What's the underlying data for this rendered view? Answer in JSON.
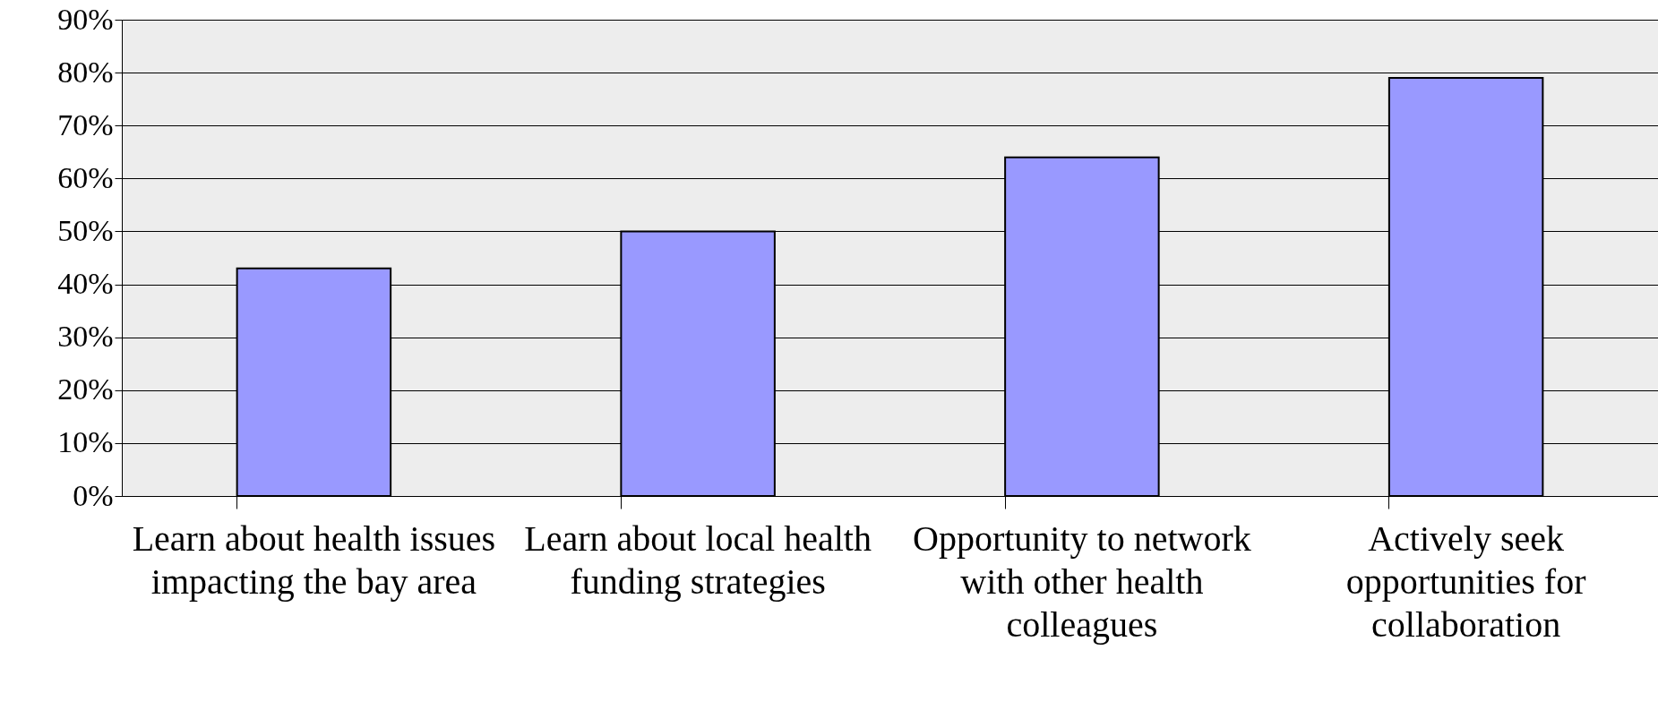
{
  "chart_data": {
    "type": "bar",
    "categories": [
      "Learn about health issues impacting the bay area",
      "Learn about local health funding strategies",
      "Opportunity to network with other health colleagues",
      "Actively seek opportunities for collaboration"
    ],
    "values": [
      43,
      50,
      64,
      79
    ],
    "color": "#9999ff",
    "ylim": [
      0,
      90
    ],
    "yticks": [
      {
        "value": 0,
        "label": "0%"
      },
      {
        "value": 10,
        "label": "10%"
      },
      {
        "value": 20,
        "label": "20%"
      },
      {
        "value": 30,
        "label": "30%"
      },
      {
        "value": 40,
        "label": "40%"
      },
      {
        "value": 50,
        "label": "50%"
      },
      {
        "value": 60,
        "label": "60%"
      },
      {
        "value": 70,
        "label": "70%"
      },
      {
        "value": 80,
        "label": "80%"
      },
      {
        "value": 90,
        "label": "90%"
      }
    ],
    "grid": "y"
  }
}
